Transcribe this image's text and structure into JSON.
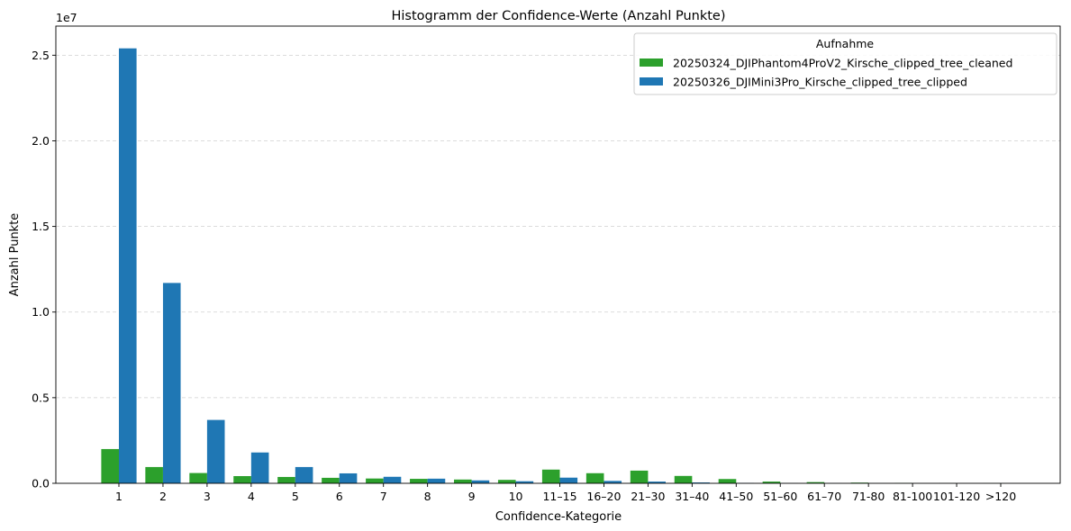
{
  "chart_data": {
    "type": "bar",
    "title": "Histogramm der Confidence-Werte (Anzahl Punkte)",
    "xlabel": "Confidence-Kategorie",
    "ylabel": "Anzahl Punkte",
    "y_multiplier_label": "1e7",
    "ylim": [
      0,
      26700000
    ],
    "yticks": [
      0,
      5000000,
      10000000,
      15000000,
      20000000,
      25000000
    ],
    "ytick_labels": [
      "0.0",
      "0.5",
      "1.0",
      "1.5",
      "2.0",
      "2.5"
    ],
    "grid": "y-dashed",
    "legend_title": "Aufnahme",
    "legend_position": "top-right",
    "categories": [
      "1",
      "2",
      "3",
      "4",
      "5",
      "6",
      "7",
      "8",
      "9",
      "10",
      "11–15",
      "16–20",
      "21–30",
      "31–40",
      "41–50",
      "51–60",
      "61–70",
      "71-80",
      "81-100",
      "101-120",
      ">120"
    ],
    "series": [
      {
        "name": "20250324_DJIPhantom4ProV2_Kirsche_clipped_tree_cleaned",
        "color": "#2ca02c",
        "values": [
          2000000,
          950000,
          600000,
          420000,
          370000,
          320000,
          280000,
          260000,
          220000,
          200000,
          800000,
          590000,
          740000,
          430000,
          250000,
          100000,
          70000,
          40000,
          15000,
          8000,
          5000
        ]
      },
      {
        "name": "20250326_DJIMini3Pro_Kirsche_clipped_tree_clipped",
        "color": "#1f77b4",
        "values": [
          25400000,
          11700000,
          3700000,
          1800000,
          950000,
          580000,
          380000,
          270000,
          170000,
          120000,
          330000,
          140000,
          100000,
          50000,
          20000,
          10000,
          5000,
          3000,
          2000,
          1000,
          1000
        ]
      }
    ]
  }
}
